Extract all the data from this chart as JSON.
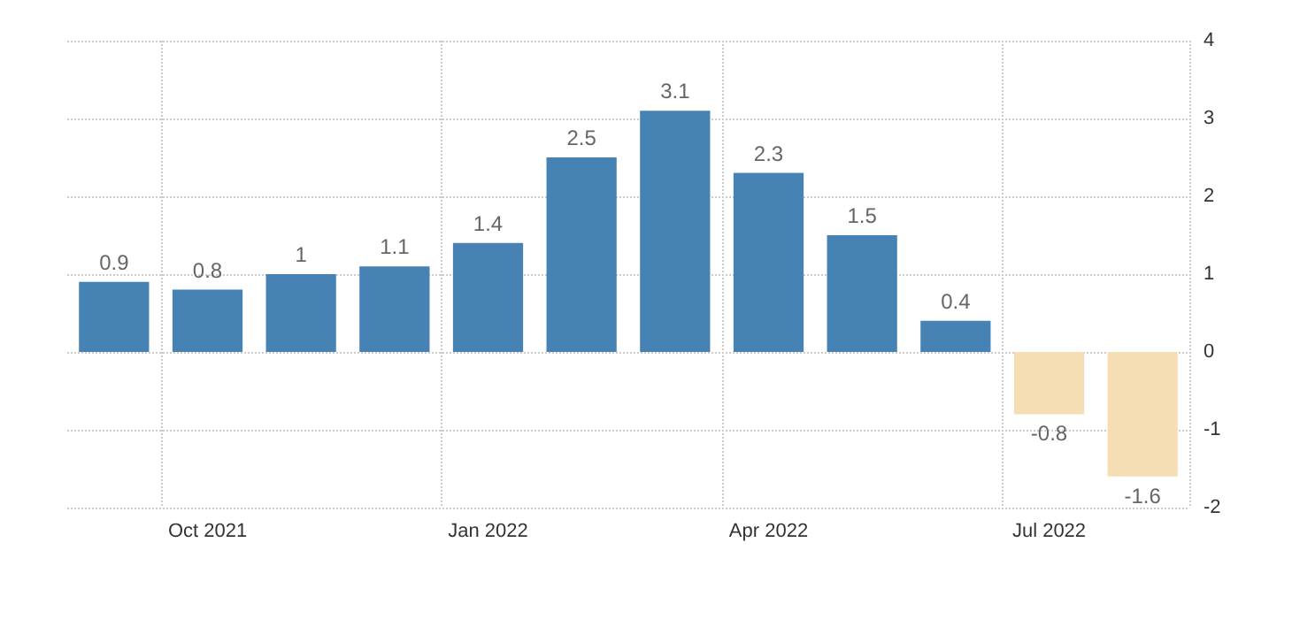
{
  "chart_data": {
    "type": "bar",
    "categories": [
      null,
      "Oct 2021",
      null,
      null,
      "Jan 2022",
      null,
      null,
      "Apr 2022",
      null,
      null,
      "Jul 2022",
      null
    ],
    "values": [
      0.9,
      0.8,
      1,
      1.1,
      1.4,
      2.5,
      3.1,
      2.3,
      1.5,
      0.4,
      -0.8,
      -1.6
    ],
    "colors": [
      "#4682b4",
      "#4682b4",
      "#4682b4",
      "#4682b4",
      "#4682b4",
      "#4682b4",
      "#4682b4",
      "#4682b4",
      "#4682b4",
      "#4682b4",
      "#f5deb3",
      "#f5deb3"
    ],
    "ylim": [
      -2,
      4
    ],
    "yticks": [
      -2,
      -1,
      0,
      1,
      2,
      3,
      4
    ],
    "grid": true,
    "data_labels": true
  }
}
